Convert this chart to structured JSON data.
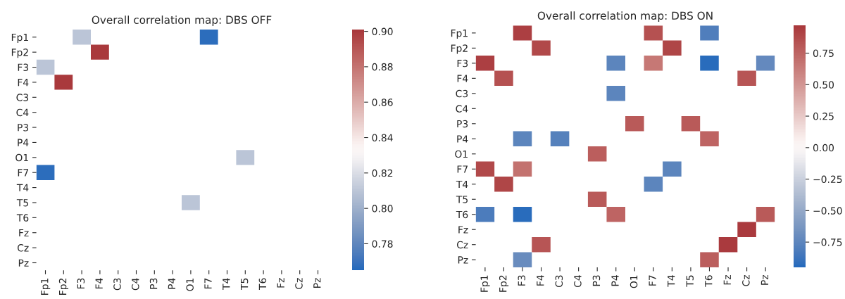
{
  "chart_data": [
    {
      "type": "heatmap",
      "title": "Overall correlation map: DBS OFF",
      "categories": [
        "Fp1",
        "Fp2",
        "F3",
        "F4",
        "C3",
        "C4",
        "P3",
        "P4",
        "O1",
        "F7",
        "T4",
        "T5",
        "T6",
        "Fz",
        "Cz",
        "Pz"
      ],
      "y_categories": [
        "Fp1",
        "Fp2",
        "F3",
        "F4",
        "C3",
        "C4",
        "P3",
        "P4",
        "O1",
        "F7",
        "T4",
        "T5",
        "T6",
        "Fz",
        "Cz",
        "Pz"
      ],
      "cells": [
        [
          null,
          null,
          0.81,
          null,
          null,
          null,
          null,
          null,
          null,
          0.767,
          null,
          null,
          null,
          null,
          null,
          null
        ],
        [
          null,
          null,
          null,
          0.9,
          null,
          null,
          null,
          null,
          null,
          null,
          null,
          null,
          null,
          null,
          null,
          null
        ],
        [
          0.81,
          null,
          null,
          null,
          null,
          null,
          null,
          null,
          null,
          null,
          null,
          null,
          null,
          null,
          null,
          null
        ],
        [
          null,
          0.9,
          null,
          null,
          null,
          null,
          null,
          null,
          null,
          null,
          null,
          null,
          null,
          null,
          null,
          null
        ],
        [
          null,
          null,
          null,
          null,
          null,
          null,
          null,
          null,
          null,
          null,
          null,
          null,
          null,
          null,
          null,
          null
        ],
        [
          null,
          null,
          null,
          null,
          null,
          null,
          null,
          null,
          null,
          null,
          null,
          null,
          null,
          null,
          null,
          null
        ],
        [
          null,
          null,
          null,
          null,
          null,
          null,
          null,
          null,
          null,
          null,
          null,
          null,
          null,
          null,
          null,
          null
        ],
        [
          null,
          null,
          null,
          null,
          null,
          null,
          null,
          null,
          null,
          null,
          null,
          null,
          null,
          null,
          null,
          null
        ],
        [
          null,
          null,
          null,
          null,
          null,
          null,
          null,
          null,
          null,
          null,
          null,
          0.81,
          null,
          null,
          null,
          null
        ],
        [
          0.767,
          null,
          null,
          null,
          null,
          null,
          null,
          null,
          null,
          null,
          null,
          null,
          null,
          null,
          null,
          null
        ],
        [
          null,
          null,
          null,
          null,
          null,
          null,
          null,
          null,
          null,
          null,
          null,
          null,
          null,
          null,
          null,
          null
        ],
        [
          null,
          null,
          null,
          null,
          null,
          null,
          null,
          null,
          0.81,
          null,
          null,
          null,
          null,
          null,
          null,
          null
        ],
        [
          null,
          null,
          null,
          null,
          null,
          null,
          null,
          null,
          null,
          null,
          null,
          null,
          null,
          null,
          null,
          null
        ],
        [
          null,
          null,
          null,
          null,
          null,
          null,
          null,
          null,
          null,
          null,
          null,
          null,
          null,
          null,
          null,
          null
        ],
        [
          null,
          null,
          null,
          null,
          null,
          null,
          null,
          null,
          null,
          null,
          null,
          null,
          null,
          null,
          null,
          null
        ],
        [
          null,
          null,
          null,
          null,
          null,
          null,
          null,
          null,
          null,
          null,
          null,
          null,
          null,
          null,
          null,
          null
        ]
      ],
      "clim": [
        0.765,
        0.901
      ],
      "cticks": [
        {
          "value": 0.78,
          "label": "0.78"
        },
        {
          "value": 0.8,
          "label": "0.80"
        },
        {
          "value": 0.82,
          "label": "0.82"
        },
        {
          "value": 0.84,
          "label": "0.84"
        },
        {
          "value": 0.86,
          "label": "0.86"
        },
        {
          "value": 0.88,
          "label": "0.88"
        },
        {
          "value": 0.9,
          "label": "0.90"
        }
      ]
    },
    {
      "type": "heatmap",
      "title": "Overall correlation map: DBS ON",
      "categories": [
        "Fp1",
        "Fp2",
        "F3",
        "F4",
        "C3",
        "C4",
        "P3",
        "P4",
        "O1",
        "F7",
        "T4",
        "T5",
        "T6",
        "Fz",
        "Cz",
        "Pz"
      ],
      "y_categories": [
        "Fp1",
        "Fp2",
        "F3",
        "F4",
        "C3",
        "C4",
        "P3",
        "P4",
        "O1",
        "F7",
        "T4",
        "T5",
        "T6",
        "Fz",
        "Cz",
        "Pz"
      ],
      "cells": [
        [
          null,
          null,
          0.93,
          null,
          null,
          null,
          null,
          null,
          null,
          0.85,
          null,
          null,
          -0.8,
          null,
          null,
          null
        ],
        [
          null,
          null,
          null,
          0.88,
          null,
          null,
          null,
          null,
          null,
          null,
          0.9,
          null,
          null,
          null,
          null,
          null
        ],
        [
          0.93,
          null,
          null,
          null,
          null,
          null,
          null,
          -0.75,
          null,
          0.65,
          null,
          null,
          -0.93,
          null,
          null,
          -0.72
        ],
        [
          null,
          0.85,
          null,
          null,
          null,
          null,
          null,
          null,
          null,
          null,
          null,
          null,
          null,
          null,
          0.82,
          null
        ],
        [
          null,
          null,
          null,
          null,
          null,
          null,
          null,
          -0.75,
          null,
          null,
          null,
          null,
          null,
          null,
          null,
          null
        ],
        [
          null,
          null,
          null,
          null,
          null,
          null,
          null,
          null,
          null,
          null,
          null,
          null,
          null,
          null,
          null,
          null
        ],
        [
          null,
          null,
          null,
          null,
          null,
          null,
          null,
          null,
          0.8,
          null,
          null,
          0.8,
          null,
          null,
          null,
          null
        ],
        [
          null,
          null,
          -0.75,
          null,
          -0.78,
          null,
          null,
          null,
          null,
          null,
          null,
          null,
          0.75,
          null,
          null,
          null
        ],
        [
          null,
          null,
          null,
          null,
          null,
          null,
          0.78,
          null,
          null,
          null,
          null,
          null,
          null,
          null,
          null,
          null
        ],
        [
          0.88,
          null,
          0.68,
          null,
          null,
          null,
          null,
          null,
          null,
          null,
          -0.75,
          null,
          null,
          null,
          null,
          null
        ],
        [
          null,
          0.9,
          null,
          null,
          null,
          null,
          null,
          null,
          null,
          -0.75,
          null,
          null,
          null,
          null,
          null,
          null
        ],
        [
          null,
          null,
          null,
          null,
          null,
          null,
          0.8,
          null,
          null,
          null,
          null,
          null,
          null,
          null,
          null,
          null
        ],
        [
          -0.82,
          null,
          -0.93,
          null,
          null,
          null,
          null,
          0.75,
          null,
          null,
          null,
          null,
          null,
          null,
          null,
          0.8
        ],
        [
          null,
          null,
          null,
          null,
          null,
          null,
          null,
          null,
          null,
          null,
          null,
          null,
          null,
          null,
          0.95,
          null
        ],
        [
          null,
          null,
          null,
          0.82,
          null,
          null,
          null,
          null,
          null,
          null,
          null,
          null,
          null,
          0.95,
          null,
          null
        ],
        [
          null,
          null,
          -0.7,
          null,
          null,
          null,
          null,
          null,
          null,
          null,
          null,
          null,
          0.78,
          null,
          null,
          null
        ]
      ],
      "clim": [
        -0.95,
        0.97
      ],
      "cticks": [
        {
          "value": -0.75,
          "label": "−0.75"
        },
        {
          "value": -0.5,
          "label": "−0.50"
        },
        {
          "value": -0.25,
          "label": "−0.25"
        },
        {
          "value": 0,
          "label": "0.00"
        },
        {
          "value": 0.25,
          "label": "0.25"
        },
        {
          "value": 0.5,
          "label": "0.50"
        },
        {
          "value": 0.75,
          "label": "0.75"
        }
      ]
    }
  ]
}
